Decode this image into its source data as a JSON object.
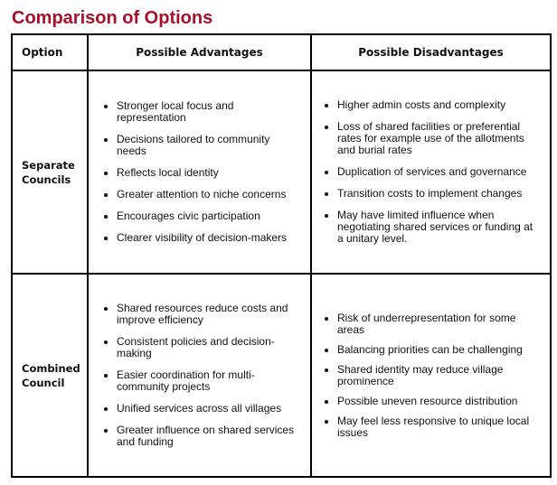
{
  "title": "Comparison of Options",
  "headers": {
    "option": "Option",
    "advantages": "Possible Advantages",
    "disadvantages": "Possible Disadvantages"
  },
  "rows": [
    {
      "option": "Separate Councils",
      "advantages": [
        "Stronger local focus and representation",
        "Decisions tailored to community needs",
        "Reflects local identity",
        "Greater attention to niche concerns",
        "Encourages civic participation",
        "Clearer visibility of decision-makers"
      ],
      "disadvantages": [
        "Higher admin costs and complexity",
        "Loss of shared facilities or preferential rates for example use of the allotments and burial rates",
        "Duplication of services and governance",
        "Transition costs to implement changes",
        "May have limited influence when negotiating shared services or funding at a unitary level."
      ]
    },
    {
      "option": "Combined Council",
      "advantages": [
        "Shared resources reduce costs and improve efficiency",
        "Consistent policies and decision-making",
        "Easier coordination for multi-community projects",
        "Unified services across all villages",
        "Greater influence on shared services and funding"
      ],
      "disadvantages": [
        "Risk of underrepresentation for some areas",
        "Balancing priorities can be challenging",
        "Shared identity may reduce village prominence",
        "Possible uneven resource distribution",
        "May feel less responsive to unique local issues"
      ]
    }
  ]
}
